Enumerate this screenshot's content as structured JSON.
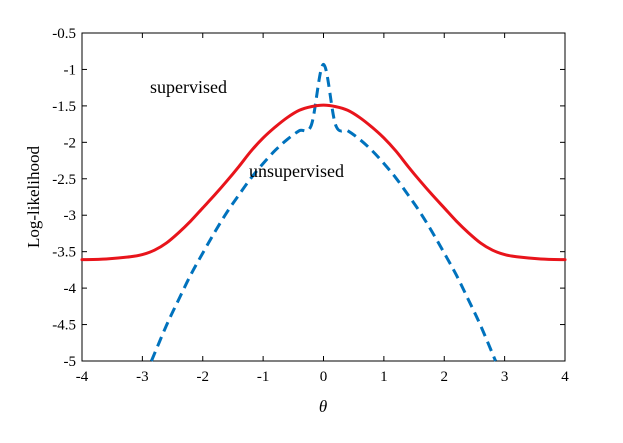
{
  "chart_data": {
    "type": "line",
    "xlabel": "θ",
    "ylabel": "Log-likelihood",
    "xlim": [
      -4,
      4
    ],
    "ylim": [
      -5,
      -0.5
    ],
    "xticks": [
      -4,
      -3,
      -2,
      -1,
      0,
      1,
      2,
      3,
      4
    ],
    "yticks": [
      -0.5,
      -1,
      -1.5,
      -2,
      -2.5,
      -3,
      -3.5,
      -4,
      -4.5,
      -5
    ],
    "x_tick_labels": [
      "-4",
      "-3",
      "-2",
      "-1",
      "0",
      "1",
      "2",
      "3",
      "4"
    ],
    "y_tick_labels": [
      "-0.5",
      "-1",
      "-1.5",
      "-2",
      "-2.5",
      "-3",
      "-3.5",
      "-4",
      "-4.5",
      "-5"
    ],
    "grid": false,
    "annotations": [
      {
        "text": "supervised",
        "x": -2.9,
        "y": -1.24
      },
      {
        "text": "unsupervised",
        "x": -1.2,
        "y": -2.45
      }
    ],
    "series": [
      {
        "color": "#0072BD",
        "linestyle": "dashed",
        "x": [
          -2.85,
          -2.6,
          -2.4,
          -2.2,
          -2.0,
          -1.8,
          -1.6,
          -1.4,
          -1.2,
          -1.0,
          -0.8,
          -0.6,
          -0.4,
          -0.2,
          0.0,
          0.2,
          0.4,
          0.6,
          0.8,
          1.0,
          1.2,
          1.4,
          1.6,
          1.8,
          2.0,
          2.2,
          2.4,
          2.6,
          2.85
        ],
        "y": [
          -5.0,
          -4.51,
          -4.16,
          -3.82,
          -3.52,
          -3.23,
          -2.96,
          -2.72,
          -2.49,
          -2.29,
          -2.11,
          -1.96,
          -1.84,
          -1.76,
          -0.93,
          -1.76,
          -1.84,
          -1.96,
          -2.11,
          -2.29,
          -2.49,
          -2.72,
          -2.96,
          -3.23,
          -3.52,
          -3.82,
          -4.16,
          -4.51,
          -5.0
        ]
      },
      {
        "color": "#E8141B",
        "linestyle": "solid",
        "x": [
          -4.0,
          -3.6,
          -3.2,
          -3.0,
          -2.8,
          -2.6,
          -2.4,
          -2.2,
          -2.0,
          -1.8,
          -1.6,
          -1.4,
          -1.2,
          -1.0,
          -0.8,
          -0.6,
          -0.4,
          -0.2,
          0.0,
          0.2,
          0.4,
          0.6,
          0.8,
          1.0,
          1.2,
          1.4,
          1.6,
          1.8,
          2.0,
          2.2,
          2.4,
          2.6,
          2.8,
          3.0,
          3.2,
          3.6,
          4.0
        ],
        "y": [
          -3.61,
          -3.6,
          -3.57,
          -3.54,
          -3.48,
          -3.38,
          -3.24,
          -3.08,
          -2.9,
          -2.72,
          -2.53,
          -2.33,
          -2.12,
          -1.94,
          -1.79,
          -1.66,
          -1.56,
          -1.51,
          -1.49,
          -1.51,
          -1.56,
          -1.66,
          -1.79,
          -1.94,
          -2.12,
          -2.33,
          -2.53,
          -2.72,
          -2.9,
          -3.08,
          -3.24,
          -3.38,
          -3.48,
          -3.54,
          -3.57,
          -3.6,
          -3.61
        ]
      }
    ]
  }
}
